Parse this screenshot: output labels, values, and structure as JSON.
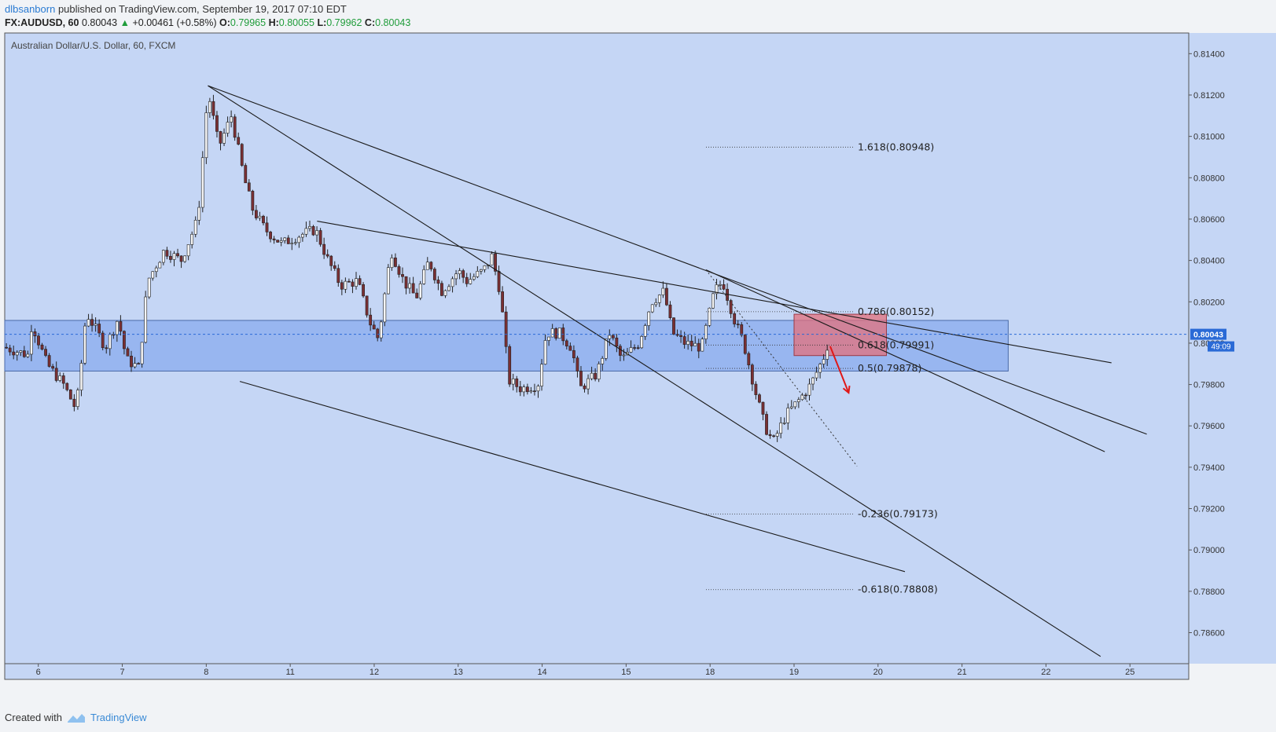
{
  "header": {
    "author": "dlbsanborn",
    "published": "published on TradingView.com, September 19, 2017 07:10 EDT",
    "symbol": "FX:AUDUSD, 60",
    "last": "0.80043",
    "change": "+0.00461 (+0.58%)",
    "o_label": "O:",
    "o_value": "0.79965",
    "h_label": "H:",
    "h_value": "0.80055",
    "l_label": "L:",
    "l_value": "0.79962",
    "c_label": "C:",
    "c_value": "0.80043"
  },
  "footer": {
    "created_with": "Created with",
    "brand": "TradingView"
  },
  "colors": {
    "pane_bg": "#c5d6f5",
    "zone": "#8fb0ef",
    "red_box": "#e3707c",
    "bull": "#f5f5f5",
    "bear": "#7a2f33",
    "last_price": "#2a6ad6"
  },
  "chart_data": {
    "type": "candlestick",
    "title": "Australian Dollar/U.S. Dollar, 60, FXCM",
    "ylim": [
      0.7845,
      0.815
    ],
    "y_ticks": [
      "0.78600",
      "0.78800",
      "0.79000",
      "0.79200",
      "0.79400",
      "0.79600",
      "0.79800",
      "0.80000",
      "0.80200",
      "0.80400",
      "0.80600",
      "0.80800",
      "0.81000",
      "0.81200",
      "0.81400"
    ],
    "x_tick_labels": [
      {
        "label": "6",
        "t": 0.4
      },
      {
        "label": "7",
        "t": 1.4
      },
      {
        "label": "8",
        "t": 2.4
      },
      {
        "label": "11",
        "t": 3.4
      },
      {
        "label": "12",
        "t": 4.4
      },
      {
        "label": "13",
        "t": 5.4
      },
      {
        "label": "14",
        "t": 6.4
      },
      {
        "label": "15",
        "t": 7.4
      },
      {
        "label": "18",
        "t": 8.4
      },
      {
        "label": "19",
        "t": 9.4
      },
      {
        "label": "20",
        "t": 10.4
      },
      {
        "label": "21",
        "t": 11.4
      },
      {
        "label": "22",
        "t": 12.4
      },
      {
        "label": "25",
        "t": 13.4
      }
    ],
    "x_range": [
      0,
      14.1
    ],
    "last_price": {
      "label": "0.80043",
      "value": 0.80043,
      "countdown": "49:09"
    },
    "price_path": [
      [
        0.0,
        0.7998
      ],
      [
        0.3,
        0.7994
      ],
      [
        0.32,
        0.801
      ],
      [
        0.5,
        0.799
      ],
      [
        0.7,
        0.798
      ],
      [
        0.85,
        0.7968
      ],
      [
        0.9,
        0.7985
      ],
      [
        0.97,
        0.8015
      ],
      [
        1.2,
        0.7998
      ],
      [
        1.35,
        0.8012
      ],
      [
        1.45,
        0.7992
      ],
      [
        1.6,
        0.7988
      ],
      [
        1.7,
        0.803
      ],
      [
        1.9,
        0.8045
      ],
      [
        2.1,
        0.804
      ],
      [
        2.3,
        0.806
      ],
      [
        2.42,
        0.8122
      ],
      [
        2.55,
        0.8095
      ],
      [
        2.7,
        0.811
      ],
      [
        2.85,
        0.808
      ],
      [
        2.95,
        0.8065
      ],
      [
        3.1,
        0.8055
      ],
      [
        3.3,
        0.8048
      ],
      [
        3.5,
        0.8052
      ],
      [
        3.7,
        0.8055
      ],
      [
        3.85,
        0.804
      ],
      [
        4.0,
        0.8028
      ],
      [
        4.2,
        0.803
      ],
      [
        4.35,
        0.801
      ],
      [
        4.45,
        0.8002
      ],
      [
        4.6,
        0.8045
      ],
      [
        4.75,
        0.803
      ],
      [
        4.9,
        0.8022
      ],
      [
        5.05,
        0.804
      ],
      [
        5.2,
        0.8025
      ],
      [
        5.4,
        0.8035
      ],
      [
        5.5,
        0.803
      ],
      [
        5.7,
        0.8035
      ],
      [
        5.8,
        0.8042
      ],
      [
        5.9,
        0.8025
      ],
      [
        5.95,
        0.8005
      ],
      [
        6.0,
        0.7982
      ],
      [
        6.15,
        0.7978
      ],
      [
        6.35,
        0.798
      ],
      [
        6.45,
        0.8005
      ],
      [
        6.6,
        0.8005
      ],
      [
        6.75,
        0.7998
      ],
      [
        6.85,
        0.7978
      ],
      [
        7.05,
        0.7985
      ],
      [
        7.2,
        0.8005
      ],
      [
        7.35,
        0.7992
      ],
      [
        7.55,
        0.8
      ],
      [
        7.7,
        0.802
      ],
      [
        7.85,
        0.8025
      ],
      [
        7.95,
        0.8005
      ],
      [
        8.1,
        0.8
      ],
      [
        8.3,
        0.7998
      ],
      [
        8.45,
        0.8025
      ],
      [
        8.55,
        0.803
      ],
      [
        8.7,
        0.801
      ],
      [
        8.8,
        0.8
      ],
      [
        8.95,
        0.7975
      ],
      [
        9.05,
        0.796
      ],
      [
        9.15,
        0.7952
      ],
      [
        9.3,
        0.7965
      ],
      [
        9.45,
        0.7972
      ],
      [
        9.6,
        0.798
      ],
      [
        9.75,
        0.7993
      ],
      [
        9.82,
        0.8002
      ]
    ],
    "trendlines": [
      {
        "p1": [
          2.42,
          0.81245
        ],
        "p2": [
          13.05,
          0.78485
        ]
      },
      {
        "p1": [
          2.42,
          0.81245
        ],
        "p2": [
          13.6,
          0.7956
        ]
      },
      {
        "p1": [
          3.72,
          0.8059
        ],
        "p2": [
          13.18,
          0.79905
        ]
      },
      {
        "p1": [
          8.35,
          0.80355
        ],
        "p2": [
          13.1,
          0.79475
        ]
      },
      {
        "p1": [
          2.8,
          0.79815
        ],
        "p2": [
          10.72,
          0.78895
        ]
      }
    ],
    "dotted_line": {
      "p1": [
        8.35,
        0.80355
      ],
      "p2": [
        10.15,
        0.79405
      ]
    },
    "support_zone": {
      "x_range": [
        0.0,
        11.95
      ],
      "y_range": [
        0.79865,
        0.8011
      ]
    },
    "resistance_box": {
      "x_range": [
        9.4,
        10.5
      ],
      "y_range": [
        0.7994,
        0.8014
      ]
    },
    "arrow": {
      "from": [
        9.83,
        0.79985
      ],
      "to": [
        10.05,
        0.7976
      ]
    },
    "fib_levels": [
      {
        "label": "1.618(0.80948)",
        "value": 0.80948
      },
      {
        "label": "0.786(0.80152)",
        "value": 0.80152
      },
      {
        "label": "0.618(0.79991)",
        "value": 0.79991
      },
      {
        "label": "0.5(0.79878)",
        "value": 0.79878
      },
      {
        "label": "-0.236(0.79173)",
        "value": 0.79173
      },
      {
        "label": "-0.618(0.78808)",
        "value": 0.78808
      }
    ]
  }
}
